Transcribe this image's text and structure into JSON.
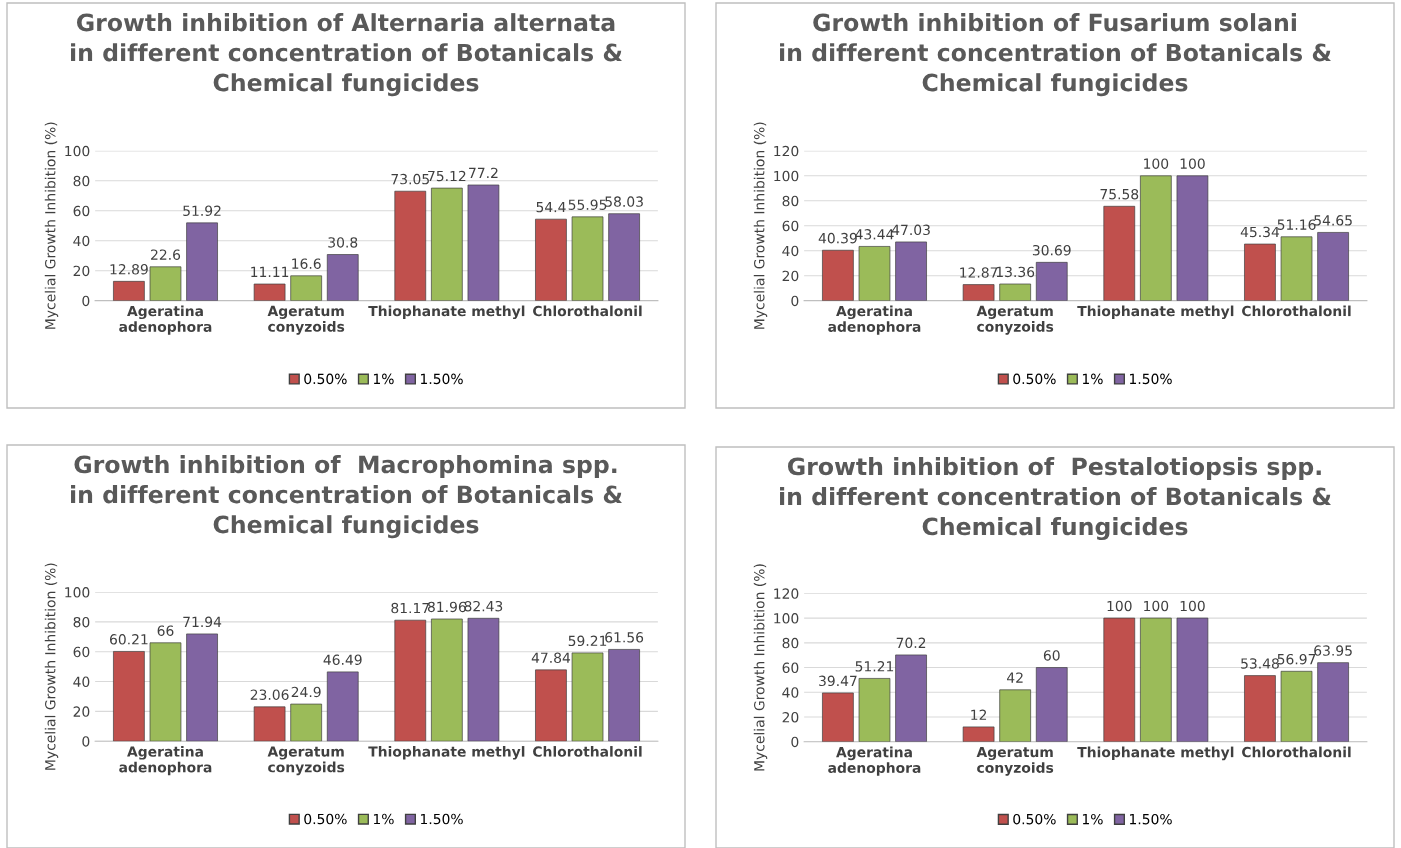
{
  "chart_data": [
    {
      "type": "bar",
      "title": "Growth inhibition of Alternaria alternata\nin different concentration of Botanicals &\nChemical fungicides",
      "ylabel": "Mycelial Growth Inhibition (%)",
      "categories": [
        "Ageratina\nadenophora",
        "Ageratum\nconyzoids",
        "Thiophanate methyl",
        "Chlorothalonil"
      ],
      "ylim": [
        0,
        100
      ],
      "yticks": [
        0,
        20,
        40,
        60,
        80,
        100
      ],
      "grid": "y",
      "legend": "bottom",
      "data_labels": true,
      "series": [
        {
          "name": "0.50%",
          "color": "#c0504d",
          "values": [
            12.89,
            11.11,
            73.05,
            54.4
          ]
        },
        {
          "name": "1%",
          "color": "#9bbb59",
          "values": [
            22.6,
            16.6,
            75.12,
            55.95
          ]
        },
        {
          "name": "1.50%",
          "color": "#8064a2",
          "values": [
            51.92,
            30.8,
            77.2,
            58.03
          ]
        }
      ]
    },
    {
      "type": "bar",
      "title": "Growth inhibition of Fusarium solani\nin different concentration of Botanicals &\nChemical fungicides",
      "ylabel": "Mycelial Growth Inhibition (%)",
      "categories": [
        "Ageratina\nadenophora",
        "Ageratum\nconyzoids",
        "Thiophanate methyl",
        "Chlorothalonil"
      ],
      "ylim": [
        0,
        120
      ],
      "yticks": [
        0,
        20,
        40,
        60,
        80,
        100,
        120
      ],
      "grid": "y",
      "legend": "bottom",
      "data_labels": true,
      "series": [
        {
          "name": "0.50%",
          "color": "#c0504d",
          "values": [
            40.39,
            12.87,
            75.58,
            45.34
          ]
        },
        {
          "name": "1%",
          "color": "#9bbb59",
          "values": [
            43.44,
            13.36,
            100,
            51.16
          ]
        },
        {
          "name": "1.50%",
          "color": "#8064a2",
          "values": [
            47.03,
            30.69,
            100,
            54.65
          ]
        }
      ]
    },
    {
      "type": "bar",
      "title": "Growth inhibition of  Macrophomina spp.\nin different concentration of Botanicals &\nChemical fungicides",
      "ylabel": "Mycelial Growth Inhibition (%)",
      "categories": [
        "Ageratina\nadenophora",
        "Ageratum\nconyzoids",
        "Thiophanate methyl",
        "Chlorothalonil"
      ],
      "ylim": [
        0,
        100
      ],
      "yticks": [
        0,
        20,
        40,
        60,
        80,
        100
      ],
      "grid": "y",
      "legend": "bottom",
      "data_labels": true,
      "series": [
        {
          "name": "0.50%",
          "color": "#c0504d",
          "values": [
            60.21,
            23.06,
            81.17,
            47.84
          ]
        },
        {
          "name": "1%",
          "color": "#9bbb59",
          "values": [
            66,
            24.9,
            81.96,
            59.21
          ]
        },
        {
          "name": "1.50%",
          "color": "#8064a2",
          "values": [
            71.94,
            46.49,
            82.43,
            61.56
          ]
        }
      ]
    },
    {
      "type": "bar",
      "title": "Growth inhibition of  Pestalotiopsis spp.\nin different concentration of Botanicals &\nChemical fungicides",
      "ylabel": "Mycelial Growth Inhibition (%)",
      "categories": [
        "Ageratina\nadenophora",
        "Ageratum\nconyzoids",
        "Thiophanate methyl",
        "Chlorothalonil"
      ],
      "ylim": [
        0,
        120
      ],
      "yticks": [
        0,
        20,
        40,
        60,
        80,
        100,
        120
      ],
      "grid": "y",
      "legend": "bottom",
      "data_labels": true,
      "series": [
        {
          "name": "0.50%",
          "color": "#c0504d",
          "values": [
            39.47,
            12,
            100,
            53.48
          ]
        },
        {
          "name": "1%",
          "color": "#9bbb59",
          "values": [
            51.21,
            42,
            100,
            56.97
          ]
        },
        {
          "name": "1.50%",
          "color": "#8064a2",
          "values": [
            70.2,
            60,
            100,
            63.95
          ]
        }
      ]
    }
  ]
}
